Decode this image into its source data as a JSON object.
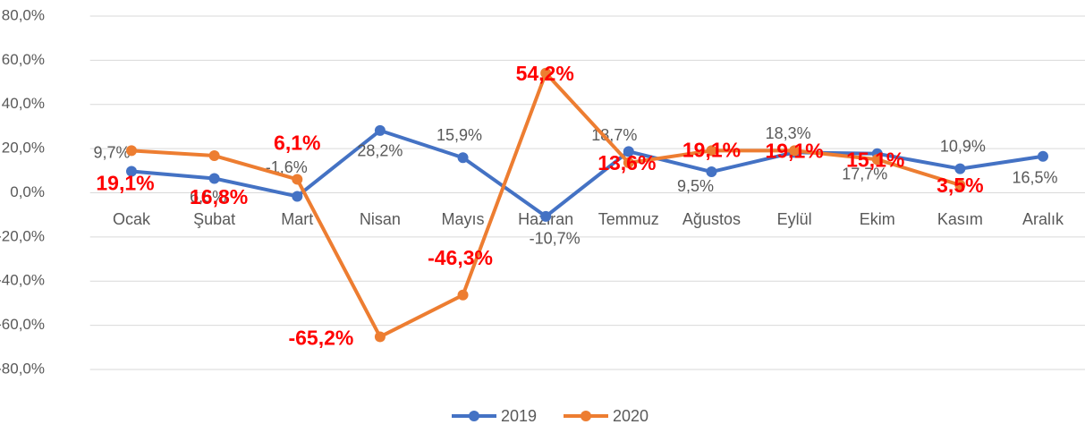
{
  "chart_data": {
    "type": "line",
    "categories": [
      "Ocak",
      "Şubat",
      "Mart",
      "Nisan",
      "Mayıs",
      "Haziran",
      "Temmuz",
      "Ağustos",
      "Eylül",
      "Ekim",
      "Kasım",
      "Aralık"
    ],
    "series": [
      {
        "name": "2019",
        "color": "#4472c4",
        "values": [
          9.7,
          6.5,
          -1.6,
          28.2,
          15.9,
          -10.7,
          18.7,
          9.5,
          18.3,
          17.7,
          10.9,
          16.5
        ],
        "value_labels": [
          "9,7%",
          "6,5%",
          "-1,6%",
          "28,2%",
          "15,9%",
          "-10,7%",
          "18,7%",
          "9,5%",
          "18,3%",
          "17,7%",
          "10,9%",
          "16,5%"
        ]
      },
      {
        "name": "2020",
        "color": "#ed7d31",
        "values": [
          19.1,
          16.8,
          6.1,
          -65.2,
          -46.3,
          54.2,
          13.6,
          19.1,
          19.1,
          15.1,
          3.5,
          null
        ],
        "value_labels": [
          "19,1%",
          "16,8%",
          "6,1%",
          "-65,2%",
          "-46,3%",
          "54,2%",
          "13,6%",
          "19,1%",
          "19,1%",
          "15,1%",
          "3,5%",
          null
        ]
      }
    ],
    "ylim": [
      -80,
      80
    ],
    "yticks": [
      {
        "value": -80,
        "label": "-80,0%"
      },
      {
        "value": -60,
        "label": "-60,0%"
      },
      {
        "value": -40,
        "label": "-40,0%"
      },
      {
        "value": -20,
        "label": "-20,0%"
      },
      {
        "value": 0,
        "label": "0,0%"
      },
      {
        "value": 20,
        "label": "20,0%"
      },
      {
        "value": 40,
        "label": "40,0%"
      },
      {
        "value": 60,
        "label": "60,0%"
      },
      {
        "value": 80,
        "label": "80,0%"
      }
    ],
    "grid": true,
    "legend": "bottom"
  }
}
